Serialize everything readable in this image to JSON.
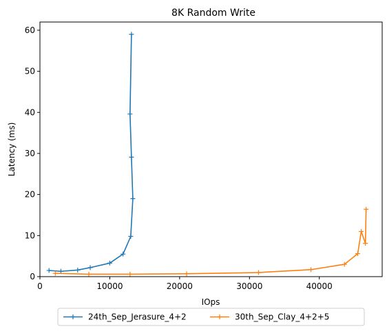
{
  "chart_data": {
    "type": "line",
    "title": "8K  Random Write",
    "xlabel": "IOps",
    "ylabel": "Latency (ms)",
    "xlim": [
      0,
      49000
    ],
    "ylim": [
      0,
      62
    ],
    "xticks": [
      0,
      10000,
      20000,
      30000,
      40000
    ],
    "xtick_labels": [
      "0",
      "10000",
      "20000",
      "30000",
      "40000"
    ],
    "yticks": [
      0,
      10,
      20,
      30,
      40,
      50,
      60
    ],
    "ytick_labels": [
      "0",
      "10",
      "20",
      "30",
      "40",
      "50",
      "60"
    ],
    "grid": false,
    "legend_position": "bottom-center-outside",
    "marker": "plus",
    "series": [
      {
        "name": "24th_Sep_Jerasure_4+2",
        "color": "#1f77b4",
        "x": [
          1300,
          3000,
          5400,
          7200,
          10000,
          11900,
          13000,
          13300,
          13100,
          12900,
          13100
        ],
        "y": [
          1.5,
          1.3,
          1.6,
          2.2,
          3.3,
          5.5,
          9.8,
          19.0,
          29.1,
          39.6,
          59.0
        ]
      },
      {
        "name": "30th_Sep_Clay_4+2+5",
        "color": "#ff7f0e",
        "x": [
          2200,
          7000,
          12900,
          21000,
          31300,
          38800,
          43600,
          45500,
          46000,
          46600,
          46700
        ],
        "y": [
          0.8,
          0.6,
          0.6,
          0.7,
          1.0,
          1.7,
          3.0,
          5.6,
          11.0,
          8.1,
          16.4
        ]
      }
    ]
  }
}
